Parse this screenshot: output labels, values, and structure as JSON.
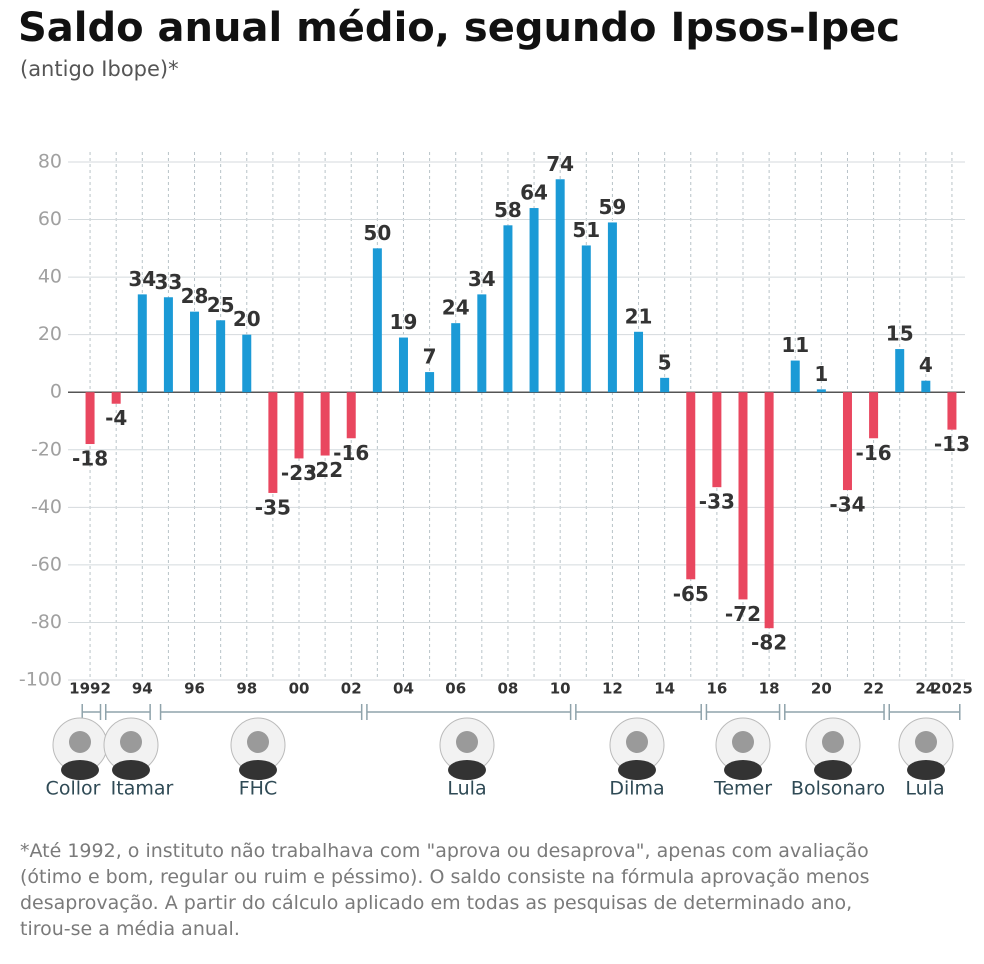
{
  "chart_data": {
    "type": "bar",
    "title": "Saldo anual médio, segundo Ipsos-Ipec",
    "subtitle": "(antigo Ibope)*",
    "categories": [
      "1992",
      null,
      "94",
      null,
      "96",
      null,
      "98",
      null,
      "00",
      null,
      "02",
      null,
      "04",
      null,
      "06",
      null,
      "08",
      null,
      "10",
      null,
      "12",
      null,
      "14",
      null,
      "16",
      null,
      "18",
      null,
      "20",
      null,
      "22",
      null,
      "24",
      "2025"
    ],
    "values": [
      -18,
      -4,
      34,
      33,
      28,
      25,
      20,
      -35,
      -23,
      -22,
      -16,
      50,
      19,
      7,
      24,
      34,
      58,
      64,
      74,
      51,
      59,
      21,
      5,
      -65,
      -33,
      -72,
      -82,
      11,
      1,
      -34,
      -16,
      15,
      4,
      -13
    ],
    "colors": {
      "positive": "#1b9ad6",
      "negative": "#e9475f"
    },
    "ylim": [
      -100,
      80
    ],
    "yticks": [
      -100,
      -80,
      -60,
      -40,
      -20,
      0,
      20,
      40,
      60,
      80
    ],
    "grid": true,
    "presidents": [
      "Collor",
      "Itamar",
      "FHC",
      "Lula",
      "Dilma",
      "Temer",
      "Bolsonaro",
      "Lula"
    ],
    "footnote": [
      "*Até 1992, o instituto não trabalhava com \"aprova ou desaprova\", apenas com avaliação",
      "(ótimo e bom, regular ou ruim e péssimo). O saldo consiste na fórmula aprovação menos",
      "desaprovação. A partir do cálculo aplicado em todas as pesquisas de determinado ano,",
      "tirou-se a média anual."
    ]
  }
}
